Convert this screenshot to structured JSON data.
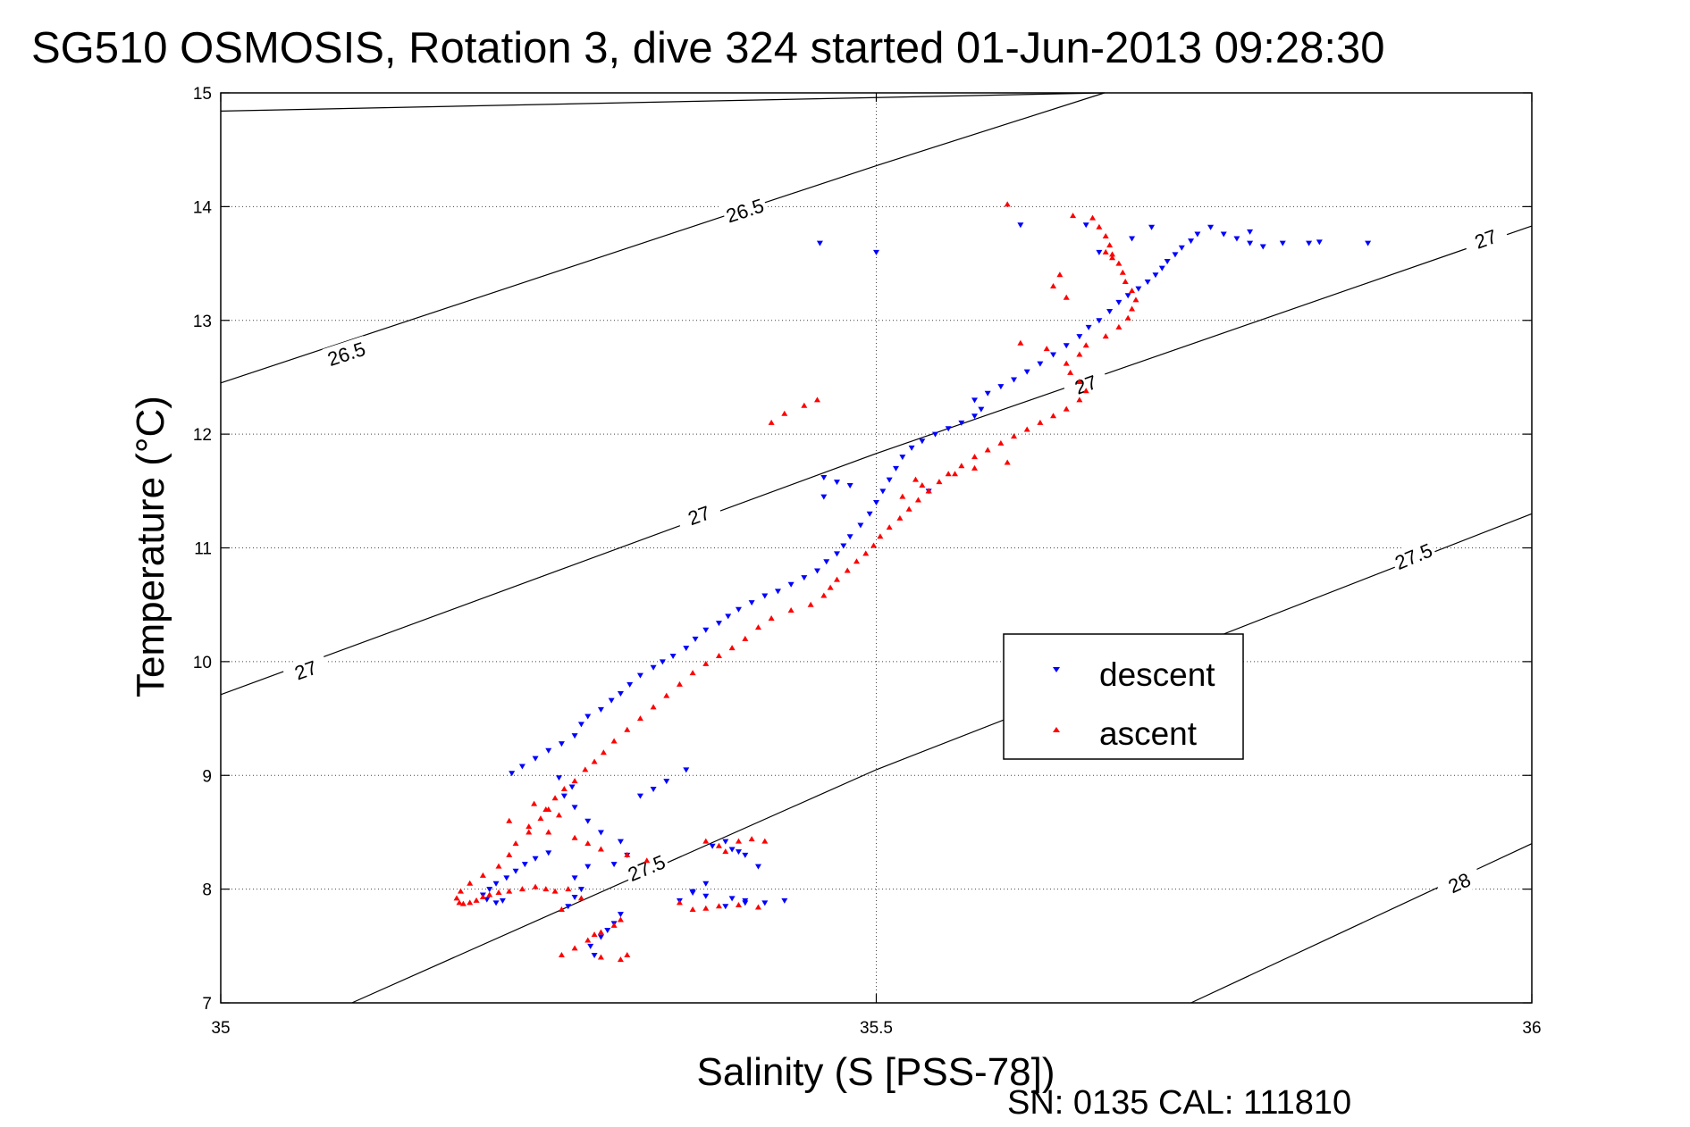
{
  "chart_data": {
    "type": "scatter",
    "title": "SG510 OSMOSIS, Rotation 3, dive 324 started 01-Jun-2013 09:28:30",
    "xlabel": "Salinity (S [PSS-78])",
    "ylabel": "Temperature (°C)",
    "footer": "SN: 0135  CAL: 111810",
    "xlim": [
      35,
      36
    ],
    "ylim": [
      7,
      15
    ],
    "xticks": [
      35,
      35.5,
      36
    ],
    "yticks": [
      7,
      8,
      9,
      10,
      11,
      12,
      13,
      14,
      15
    ],
    "grid": true,
    "legend_position": "lower-right",
    "contours": [
      {
        "level": "26.5",
        "points": [
          [
            35.0,
            14.84
          ],
          [
            35.674,
            15.0
          ]
        ],
        "labels": []
      },
      {
        "level": "26.5",
        "points": [
          [
            35.0,
            12.45
          ],
          [
            35.5,
            14.36
          ],
          [
            35.674,
            15.0
          ]
        ],
        "labels": [
          [
            35.4,
            13.96
          ],
          [
            35.096,
            12.7
          ]
        ]
      },
      {
        "level": "27",
        "points": [
          [
            35.0,
            9.71
          ],
          [
            35.5,
            11.83
          ],
          [
            36.0,
            13.83
          ]
        ],
        "labels": [
          [
            35.66,
            12.43
          ],
          [
            35.365,
            11.28
          ],
          [
            35.065,
            9.92
          ],
          [
            35.965,
            13.71
          ]
        ]
      },
      {
        "level": "27.5",
        "points": [
          [
            35.1,
            7.0
          ],
          [
            35.5,
            9.05
          ],
          [
            36.0,
            11.3
          ]
        ],
        "labels": [
          [
            35.325,
            8.18
          ],
          [
            35.91,
            10.92
          ]
        ]
      },
      {
        "level": "28",
        "points": [
          [
            35.74,
            7.0
          ],
          [
            36.0,
            8.4
          ]
        ],
        "labels": [
          [
            35.945,
            8.05
          ]
        ]
      }
    ],
    "series": [
      {
        "name": "descent",
        "color": "#0000ff",
        "marker": "triangle-down",
        "x": [
          35.285,
          35.282,
          35.29,
          35.295,
          35.3,
          35.305,
          35.265,
          35.27,
          35.275,
          35.27,
          35.28,
          35.3,
          35.31,
          35.305,
          35.29,
          35.28,
          35.27,
          35.262,
          35.268,
          35.258,
          35.25,
          35.24,
          35.232,
          35.225,
          35.218,
          35.21,
          35.205,
          35.2,
          35.203,
          35.21,
          35.215,
          35.222,
          35.23,
          35.24,
          35.25,
          35.26,
          35.27,
          35.275,
          35.28,
          35.29,
          35.298,
          35.305,
          35.312,
          35.32,
          35.33,
          35.337,
          35.345,
          35.355,
          35.362,
          35.37,
          35.38,
          35.387,
          35.395,
          35.405,
          35.415,
          35.425,
          35.435,
          35.445,
          35.455,
          35.462,
          35.47,
          35.475,
          35.48,
          35.488,
          35.495,
          35.5,
          35.505,
          35.51,
          35.515,
          35.52,
          35.527,
          35.535,
          35.545,
          35.555,
          35.565,
          35.575,
          35.58,
          35.575,
          35.585,
          35.595,
          35.605,
          35.615,
          35.625,
          35.635,
          35.645,
          35.655,
          35.662,
          35.67,
          35.678,
          35.685,
          35.692,
          35.7,
          35.707,
          35.713,
          35.718,
          35.722,
          35.728,
          35.733,
          35.74,
          35.745,
          35.755,
          35.765,
          35.775,
          35.785,
          35.795,
          35.81,
          35.83,
          35.695,
          35.67,
          35.5,
          35.48,
          35.47,
          35.46,
          35.54,
          35.46,
          35.385,
          35.375,
          35.395,
          35.41,
          35.37,
          35.36,
          35.35,
          35.39,
          35.4,
          35.385,
          35.37,
          35.36,
          35.4,
          35.415,
          35.43,
          35.355,
          35.34,
          35.33,
          35.32,
          35.39,
          35.4,
          35.66,
          35.61
        ],
        "y": [
          7.42,
          7.5,
          7.58,
          7.64,
          7.7,
          7.78,
          7.85,
          7.93,
          8.0,
          8.1,
          8.2,
          8.22,
          8.3,
          8.42,
          8.5,
          8.6,
          8.72,
          8.82,
          8.9,
          8.98,
          8.32,
          8.27,
          8.22,
          8.16,
          8.1,
          8.05,
          8.0,
          7.95,
          7.91,
          7.88,
          7.9,
          9.02,
          9.08,
          9.15,
          9.22,
          9.28,
          9.35,
          9.45,
          9.52,
          9.58,
          9.66,
          9.72,
          9.8,
          9.88,
          9.95,
          10.0,
          10.05,
          10.12,
          10.2,
          10.28,
          10.34,
          10.4,
          10.46,
          10.52,
          10.58,
          10.62,
          10.68,
          10.74,
          10.8,
          10.88,
          10.95,
          11.02,
          11.1,
          11.2,
          11.3,
          11.4,
          11.5,
          11.6,
          11.7,
          11.8,
          11.88,
          11.94,
          12.0,
          12.05,
          12.1,
          12.16,
          12.22,
          12.3,
          12.36,
          12.42,
          12.48,
          12.55,
          12.62,
          12.7,
          12.78,
          12.86,
          12.94,
          13.0,
          13.08,
          13.16,
          13.22,
          13.28,
          13.34,
          13.4,
          13.46,
          13.52,
          13.58,
          13.64,
          13.7,
          13.76,
          13.82,
          13.76,
          13.72,
          13.68,
          13.65,
          13.68,
          13.68,
          13.72,
          13.6,
          13.6,
          11.55,
          11.58,
          11.62,
          11.5,
          11.45,
          8.42,
          8.38,
          8.33,
          8.2,
          8.05,
          7.98,
          7.9,
          7.92,
          7.88,
          7.85,
          7.94,
          7.97,
          7.9,
          7.88,
          7.9,
          9.05,
          8.95,
          8.88,
          8.82,
          8.35,
          8.3,
          13.84,
          13.84
        ]
      },
      {
        "name": "ascent",
        "color": "#ff0000",
        "marker": "triangle-up",
        "x": [
          35.26,
          35.27,
          35.28,
          35.29,
          35.3,
          35.305,
          35.26,
          35.275,
          35.265,
          35.255,
          35.248,
          35.24,
          35.23,
          35.22,
          35.212,
          35.205,
          35.2,
          35.195,
          35.19,
          35.185,
          35.182,
          35.18,
          35.183,
          35.19,
          35.2,
          35.212,
          35.22,
          35.225,
          35.235,
          35.244,
          35.25,
          35.255,
          35.262,
          35.27,
          35.278,
          35.285,
          35.292,
          35.3,
          35.31,
          35.32,
          35.33,
          35.34,
          35.35,
          35.36,
          35.37,
          35.38,
          35.39,
          35.4,
          35.41,
          35.42,
          35.435,
          35.45,
          35.46,
          35.465,
          35.47,
          35.478,
          35.485,
          35.492,
          35.498,
          35.503,
          35.51,
          35.518,
          35.525,
          35.532,
          35.54,
          35.548,
          35.555,
          35.565,
          35.575,
          35.585,
          35.595,
          35.605,
          35.615,
          35.625,
          35.635,
          35.645,
          35.655,
          35.66,
          35.655,
          35.648,
          35.645,
          35.655,
          35.66,
          35.675,
          35.685,
          35.692,
          35.695,
          35.698,
          35.695,
          35.69,
          35.688,
          35.685,
          35.68,
          35.678,
          35.675,
          35.67,
          35.665,
          35.258,
          35.248,
          35.239,
          35.22,
          35.235,
          35.25,
          35.27,
          35.28,
          35.29,
          35.31,
          35.325,
          35.37,
          35.38,
          35.385,
          35.395,
          35.405,
          35.415,
          35.38,
          35.37,
          35.36,
          35.35,
          35.395,
          35.41,
          35.53,
          35.535,
          35.54,
          35.52,
          35.42,
          35.43,
          35.445,
          35.455,
          35.56,
          35.575,
          35.6,
          35.31,
          35.305,
          35.29,
          35.285,
          35.64,
          35.635,
          35.645,
          35.61,
          35.63,
          35.675,
          35.68,
          35.65
        ],
        "y": [
          7.42,
          7.48,
          7.55,
          7.62,
          7.68,
          7.73,
          7.82,
          7.92,
          8.0,
          7.98,
          8.0,
          8.02,
          8.0,
          7.98,
          7.97,
          7.95,
          7.93,
          7.9,
          7.88,
          7.87,
          7.88,
          7.92,
          7.98,
          8.05,
          8.12,
          8.2,
          8.3,
          8.4,
          8.5,
          8.62,
          8.7,
          8.8,
          8.88,
          8.95,
          9.05,
          9.12,
          9.2,
          9.3,
          9.4,
          9.5,
          9.6,
          9.7,
          9.8,
          9.9,
          9.98,
          10.05,
          10.12,
          10.2,
          10.3,
          10.38,
          10.45,
          10.5,
          10.58,
          10.65,
          10.72,
          10.8,
          10.88,
          10.95,
          11.02,
          11.1,
          11.18,
          11.26,
          11.34,
          11.42,
          11.5,
          11.58,
          11.65,
          11.72,
          11.8,
          11.86,
          11.92,
          11.98,
          12.04,
          12.1,
          12.16,
          12.22,
          12.3,
          12.38,
          12.46,
          12.54,
          12.62,
          12.7,
          12.78,
          12.86,
          12.94,
          13.02,
          13.1,
          13.18,
          13.26,
          13.34,
          13.42,
          13.5,
          13.58,
          13.66,
          13.74,
          13.82,
          13.9,
          8.65,
          8.7,
          8.75,
          8.6,
          8.55,
          8.5,
          8.45,
          8.4,
          8.35,
          8.3,
          8.25,
          8.42,
          8.38,
          8.33,
          8.42,
          8.44,
          8.42,
          7.85,
          7.83,
          7.82,
          7.88,
          7.86,
          7.84,
          11.6,
          11.55,
          11.5,
          11.45,
          12.1,
          12.18,
          12.25,
          12.3,
          11.65,
          11.7,
          11.75,
          7.42,
          7.38,
          7.4,
          7.6,
          13.4,
          13.3,
          13.2,
          12.8,
          12.75,
          13.6,
          13.55,
          13.92
        ]
      }
    ],
    "extra_points_descent": [
      [
        35.457,
        13.68
      ],
      [
        35.71,
        13.82
      ],
      [
        35.785,
        13.78
      ],
      [
        35.838,
        13.69
      ],
      [
        35.875,
        13.68
      ]
    ],
    "extra_points_ascent": [
      [
        35.6,
        14.02
      ]
    ]
  }
}
